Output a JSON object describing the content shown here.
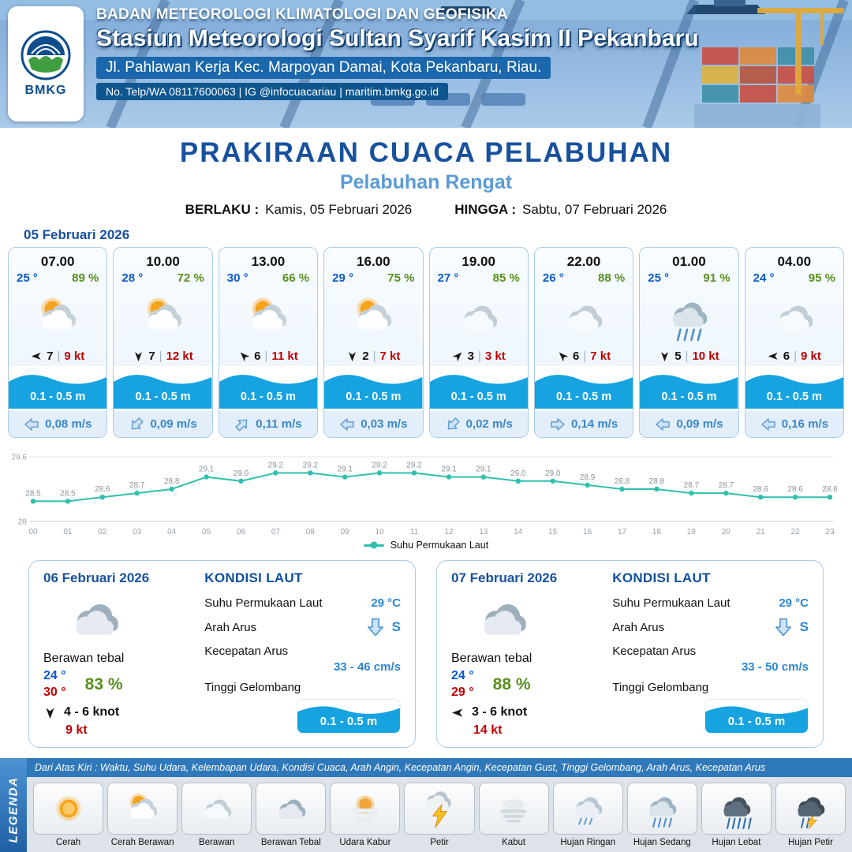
{
  "header": {
    "agency": "BADAN METEOROLOGI KLIMATOLOGI DAN GEOFISIKA",
    "station": "Stasiun Meteorologi Sultan Syarif Kasim II Pekanbaru",
    "address": "Jl. Pahlawan Kerja Kec. Marpoyan Damai, Kota Pekanbaru, Riau.",
    "contact": "No. Telp/WA 08117600063 | IG @infocuacariau | maritim.bmkg.go.id",
    "logo_label": "BMKG"
  },
  "title": {
    "main": "PRAKIRAAN CUACA PELABUHAN",
    "port": "Pelabuhan Rengat",
    "valid_from_label": "BERLAKU :",
    "valid_from": "Kamis, 05 Februari 2026",
    "valid_to_label": "HINGGA :",
    "valid_to": "Sabtu, 07 Februari 2026"
  },
  "ui": {
    "sep": "|"
  },
  "day1": {
    "date": "05 Februari 2026",
    "cards": [
      {
        "time": "07.00",
        "temp": "25 °",
        "humidity": "89 %",
        "icon": "cerah-berawan",
        "wind_dir": "w",
        "wind_force": "7",
        "wind_speed": "9 kt",
        "wave": "0.1 - 0.5 m",
        "current_dir": "w",
        "current": "0,08 m/s"
      },
      {
        "time": "10.00",
        "temp": "28 °",
        "humidity": "72 %",
        "icon": "cerah-berawan",
        "wind_dir": "s",
        "wind_force": "7",
        "wind_speed": "12 kt",
        "wave": "0.1 - 0.5 m",
        "current_dir": "sw",
        "current": "0,09 m/s"
      },
      {
        "time": "13.00",
        "temp": "30 °",
        "humidity": "66 %",
        "icon": "cerah-berawan",
        "wind_dir": "nw",
        "wind_force": "6",
        "wind_speed": "11 kt",
        "wave": "0.1 - 0.5 m",
        "current_dir": "ne",
        "current": "0,11 m/s"
      },
      {
        "time": "16.00",
        "temp": "29 °",
        "humidity": "75 %",
        "icon": "cerah-berawan",
        "wind_dir": "s",
        "wind_force": "2",
        "wind_speed": "7 kt",
        "wave": "0.1 - 0.5 m",
        "current_dir": "w",
        "current": "0,03 m/s"
      },
      {
        "time": "19.00",
        "temp": "27 °",
        "humidity": "85 %",
        "icon": "berawan",
        "wind_dir": "ne",
        "wind_force": "3",
        "wind_speed": "3 kt",
        "wave": "0.1 - 0.5 m",
        "current_dir": "sw",
        "current": "0,02 m/s"
      },
      {
        "time": "22.00",
        "temp": "26 °",
        "humidity": "88 %",
        "icon": "berawan",
        "wind_dir": "nw",
        "wind_force": "6",
        "wind_speed": "7 kt",
        "wave": "0.1 - 0.5 m",
        "current_dir": "e",
        "current": "0,14 m/s"
      },
      {
        "time": "01.00",
        "temp": "25 °",
        "humidity": "91 %",
        "icon": "hujan-sedang",
        "wind_dir": "s",
        "wind_force": "5",
        "wind_speed": "10 kt",
        "wave": "0.1 - 0.5 m",
        "current_dir": "w",
        "current": "0,09 m/s"
      },
      {
        "time": "04.00",
        "temp": "24 °",
        "humidity": "95 %",
        "icon": "berawan",
        "wind_dir": "w",
        "wind_force": "6",
        "wind_speed": "9 kt",
        "wave": "0.1 - 0.5 m",
        "current_dir": "w",
        "current": "0,16 m/s"
      }
    ]
  },
  "chart_data": {
    "type": "line",
    "x": [
      "00",
      "01",
      "02",
      "03",
      "04",
      "05",
      "06",
      "07",
      "08",
      "09",
      "10",
      "11",
      "12",
      "13",
      "14",
      "15",
      "16",
      "17",
      "18",
      "19",
      "20",
      "21",
      "22",
      "23"
    ],
    "series": [
      {
        "name": "Suhu Permukaan Laut",
        "values": [
          28.5,
          28.5,
          28.6,
          28.7,
          28.8,
          29.1,
          29.0,
          29.2,
          29.2,
          29.1,
          29.2,
          29.2,
          29.1,
          29.1,
          29.0,
          29.0,
          28.9,
          28.8,
          28.8,
          28.7,
          28.7,
          28.6,
          28.6,
          28.6
        ]
      }
    ],
    "ylim": [
      28,
      29.6
    ],
    "yticks": [
      28,
      29.6
    ],
    "line_color": "#2fc0ad",
    "grid": true,
    "legend_position": "bottom"
  },
  "days": [
    {
      "date": "06 Februari 2026",
      "icon": "berawan-tebal",
      "condition": "Berawan tebal",
      "temp_min": "24 °",
      "temp_max": "30 °",
      "humidity": "83 %",
      "wind_dir": "s",
      "wind_range": "4 - 6 knot",
      "gust": "9 kt",
      "sea": {
        "title": "KONDISI LAUT",
        "sst_label": "Suhu Permukaan Laut",
        "sst": "29 °C",
        "current_dir_label": "Arah Arus",
        "current_dir": "S",
        "current_dir_code": "s",
        "current_speed_label": "Kecepatan Arus",
        "current_speed": "33  - 46 cm/s",
        "wave_label": "Tinggi Gelombang",
        "wave": "0.1 - 0.5 m"
      }
    },
    {
      "date": "07 Februari 2026",
      "icon": "berawan-tebal",
      "condition": "Berawan tebal",
      "temp_min": "24 °",
      "temp_max": "29 °",
      "humidity": "88 %",
      "wind_dir": "w",
      "wind_range": "3  - 6 knot",
      "gust": "14 kt",
      "sea": {
        "title": "KONDISI LAUT",
        "sst_label": "Suhu Permukaan Laut",
        "sst": "29 °C",
        "current_dir_label": "Arah Arus",
        "current_dir": "S",
        "current_dir_code": "s",
        "current_speed_label": "Kecepatan Arus",
        "current_speed": "33  - 50 cm/s",
        "wave_label": "Tinggi Gelombang",
        "wave": "0.1 - 0.5 m"
      }
    }
  ],
  "legend": {
    "title": "LEGENDA",
    "note": "Dari Atas Kiri : Waktu, Suhu Udara, Kelembapan Udara, Kondisi Cuaca, Arah Angin, Kecepatan Angin, Kecepatan Gust, Tinggi Gelombang, Arah Arus, Kecepatan Arus",
    "items": [
      {
        "label": "Cerah",
        "icon": "cerah"
      },
      {
        "label": "Cerah Berawan",
        "icon": "cerah-berawan"
      },
      {
        "label": "Berawan",
        "icon": "berawan"
      },
      {
        "label": "Berawan Tebal",
        "icon": "berawan-tebal"
      },
      {
        "label": "Udara Kabur",
        "icon": "udara-kabur"
      },
      {
        "label": "Petir",
        "icon": "petir"
      },
      {
        "label": "Kabut",
        "icon": "kabut"
      },
      {
        "label": "Hujan Ringan",
        "icon": "hujan-ringan"
      },
      {
        "label": "Hujan Sedang",
        "icon": "hujan-sedang"
      },
      {
        "label": "Hujan Lebat",
        "icon": "hujan-lebat"
      },
      {
        "label": "Hujan Petir",
        "icon": "hujan-petir"
      }
    ]
  },
  "colors": {
    "navy": "#17519e",
    "light_blue": "#5b9bd5",
    "wave_blue": "#16a3e0",
    "temp_blue": "#0a58c8",
    "humidity_green": "#578e1d",
    "alert_red": "#c00000",
    "sst_line": "#2fc0ad"
  }
}
